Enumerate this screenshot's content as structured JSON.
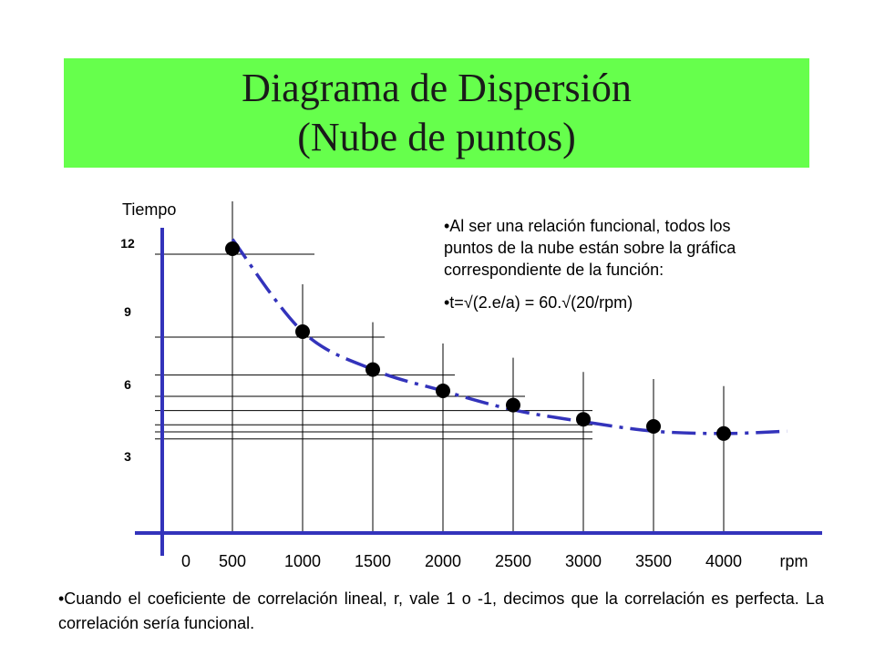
{
  "title": {
    "line1": "Diagrama de Dispersión",
    "line2": "(Nube de puntos)"
  },
  "notes": {
    "bullet1": "•Al ser una relación funcional, todos los puntos de la nube están sobre la gráfica correspondiente de la función:",
    "bullet2": "•t=√(2.e/a) = 60.√(20/rpm)"
  },
  "footer": "•Cuando el coeficiente de correlación lineal, r, vale 1 o -1, decimos que la correlación es perfecta. La correlación sería funcional.",
  "colors": {
    "title_bg": "#66ff4c",
    "axis": "#3333bb",
    "curve": "#3333bb",
    "points": "#000000"
  },
  "chart_data": {
    "type": "scatter",
    "ylabel": "Tiempo",
    "xlabel": "rpm",
    "x_ticks": [
      "0",
      "500",
      "1000",
      "1500",
      "2000",
      "2500",
      "3000",
      "3500",
      "4000",
      "rpm"
    ],
    "y_ticks": [
      "3",
      "6",
      "9",
      "12"
    ],
    "xlim": [
      0,
      4500
    ],
    "ylim": [
      0,
      13.5
    ],
    "points": [
      {
        "x": 500,
        "y": 12.0
      },
      {
        "x": 1000,
        "y": 8.5
      },
      {
        "x": 1500,
        "y": 6.9
      },
      {
        "x": 2000,
        "y": 6.0
      },
      {
        "x": 2500,
        "y": 5.4
      },
      {
        "x": 3000,
        "y": 4.8
      },
      {
        "x": 3500,
        "y": 4.5
      },
      {
        "x": 4000,
        "y": 4.2
      }
    ],
    "curve": {
      "style": "dash-dot",
      "x": [
        500,
        1000,
        1500,
        2000,
        2500,
        3000,
        3500,
        4000,
        4450
      ],
      "y": [
        12.4,
        8.5,
        6.9,
        6.0,
        5.2,
        4.7,
        4.3,
        4.2,
        4.3
      ]
    },
    "grid": false,
    "legend": "none"
  }
}
